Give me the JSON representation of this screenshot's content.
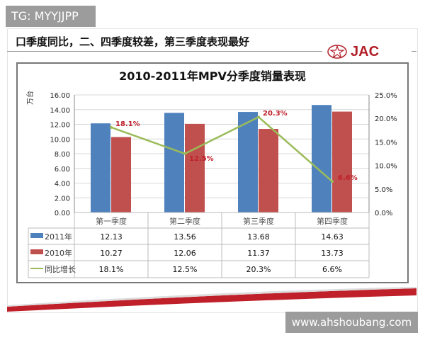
{
  "watermark_tag": "TG: MYYJJPP",
  "watermark_site": "www.ahshoubang.com",
  "headline": "口季度同比，二、四季度较差，第三季度表现最好",
  "logo_text": "JAC",
  "colors": {
    "s2011": "#4f81bd",
    "s2010": "#c0504d",
    "growth": "#9bbb59",
    "label": "#c0202a"
  },
  "chart_data": {
    "type": "bar",
    "title": "2010-2011年MPV分季度销量表现",
    "ylabel": "万台",
    "categories": [
      "第一季度",
      "第二季度",
      "第三季度",
      "第四季度"
    ],
    "ylim": [
      0,
      16
    ],
    "yticks": [
      "0.00",
      "2.00",
      "4.00",
      "6.00",
      "8.00",
      "10.00",
      "12.00",
      "14.00",
      "16.00"
    ],
    "y2lim": [
      0,
      25
    ],
    "y2ticks": [
      "0.0%",
      "5.0%",
      "10.0%",
      "15.0%",
      "20.0%",
      "25.0%"
    ],
    "series": [
      {
        "name": "2011年",
        "type": "bar",
        "values": [
          12.13,
          13.56,
          13.68,
          14.63
        ],
        "labels": [
          "12.13",
          "13.56",
          "13.68",
          "14.63"
        ]
      },
      {
        "name": "2010年",
        "type": "bar",
        "values": [
          10.27,
          12.06,
          11.37,
          13.73
        ],
        "labels": [
          "10.27",
          "12.06",
          "11.37",
          "13.73"
        ]
      },
      {
        "name": "同比增长",
        "type": "line",
        "axis": "right",
        "values": [
          18.1,
          12.5,
          20.3,
          6.6
        ],
        "labels": [
          "18.1%",
          "12.5%",
          "20.3%",
          "6.6%"
        ]
      }
    ],
    "data_table": true
  }
}
